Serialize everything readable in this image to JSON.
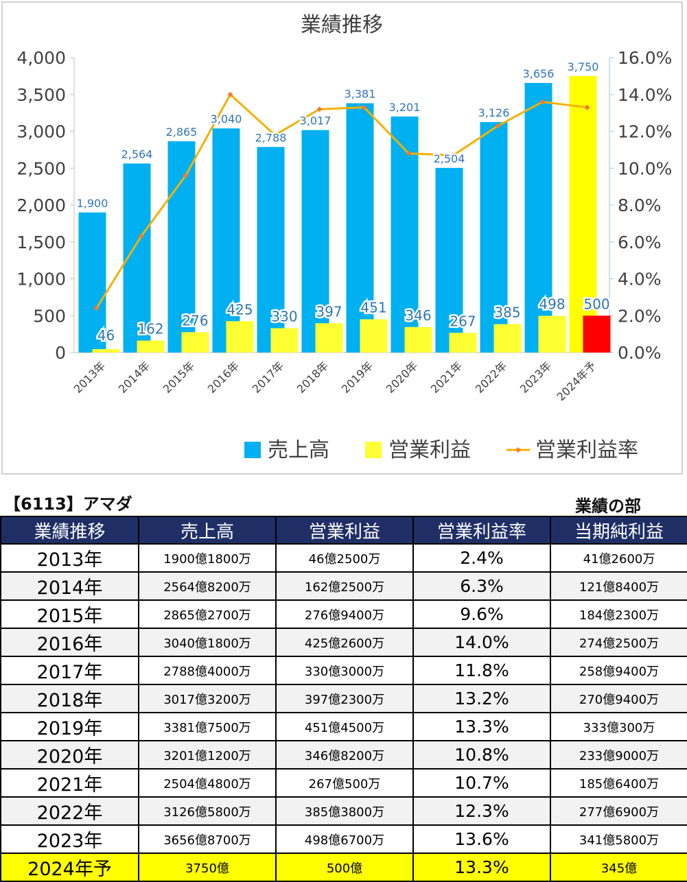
{
  "chart_data": {
    "type": "bar",
    "title": "業績推移",
    "categories": [
      "2013年",
      "2014年",
      "2015年",
      "2016年",
      "2017年",
      "2018年",
      "2019年",
      "2020年",
      "2021年",
      "2022年",
      "2023年",
      "2024年予"
    ],
    "series": [
      {
        "name": "売上高",
        "axis": "left",
        "color": "#00b0f0",
        "values": [
          1900,
          2564,
          2865,
          3040,
          2788,
          3017,
          3381,
          3201,
          2504,
          3126,
          3656,
          3750
        ]
      },
      {
        "name": "営業利益",
        "axis": "left",
        "color": "#ffff33",
        "values": [
          46,
          162,
          276,
          425,
          330,
          397,
          451,
          346,
          267,
          385,
          498,
          500
        ]
      },
      {
        "name": "営業利益率",
        "axis": "right",
        "type": "line",
        "color": "#f5b000",
        "values": [
          2.4,
          6.3,
          9.6,
          14.0,
          11.8,
          13.2,
          13.3,
          10.8,
          10.7,
          12.3,
          13.6,
          13.3
        ]
      }
    ],
    "forecast_colors": {
      "revenue": "#ffff00",
      "profit": "#ff0000"
    },
    "ylim": [
      0,
      4000
    ],
    "y_ticks": [
      "0",
      "500",
      "1,000",
      "1,500",
      "2,000",
      "2,500",
      "3,000",
      "3,500",
      "4,000"
    ],
    "y2lim": [
      0,
      16
    ],
    "y2_ticks": [
      "0.0%",
      "2.0%",
      "4.0%",
      "6.0%",
      "8.0%",
      "10.0%",
      "12.0%",
      "14.0%",
      "16.0%"
    ],
    "legend_position": "bottom",
    "grid": false
  },
  "table": {
    "company": "【6113】アマダ",
    "section": "業績の部",
    "headers": [
      "業績推移",
      "売上高",
      "営業利益",
      "営業利益率",
      "当期純利益"
    ],
    "rows": [
      [
        "2013年",
        "1900億1800万",
        "46億2500万",
        "2.4%",
        "41億2600万"
      ],
      [
        "2014年",
        "2564億8200万",
        "162億2500万",
        "6.3%",
        "121億8400万"
      ],
      [
        "2015年",
        "2865億2700万",
        "276億9400万",
        "9.6%",
        "184億2300万"
      ],
      [
        "2016年",
        "3040億1800万",
        "425億2600万",
        "14.0%",
        "274億2500万"
      ],
      [
        "2017年",
        "2788億4000万",
        "330億3000万",
        "11.8%",
        "258億9400万"
      ],
      [
        "2018年",
        "3017億3200万",
        "397億2300万",
        "13.2%",
        "270億9400万"
      ],
      [
        "2019年",
        "3381億7500万",
        "451億4500万",
        "13.3%",
        "333億300万"
      ],
      [
        "2020年",
        "3201億1200万",
        "346億8200万",
        "10.8%",
        "233億9000万"
      ],
      [
        "2021年",
        "2504億4800万",
        "267億500万",
        "10.7%",
        "185億6400万"
      ],
      [
        "2022年",
        "3126億5800万",
        "385億3800万",
        "12.3%",
        "277億6900万"
      ],
      [
        "2023年",
        "3656億8700万",
        "498億6700万",
        "13.6%",
        "341億5800万"
      ],
      [
        "2024年予",
        "3750億",
        "500億",
        "13.3%",
        "345億"
      ]
    ]
  }
}
